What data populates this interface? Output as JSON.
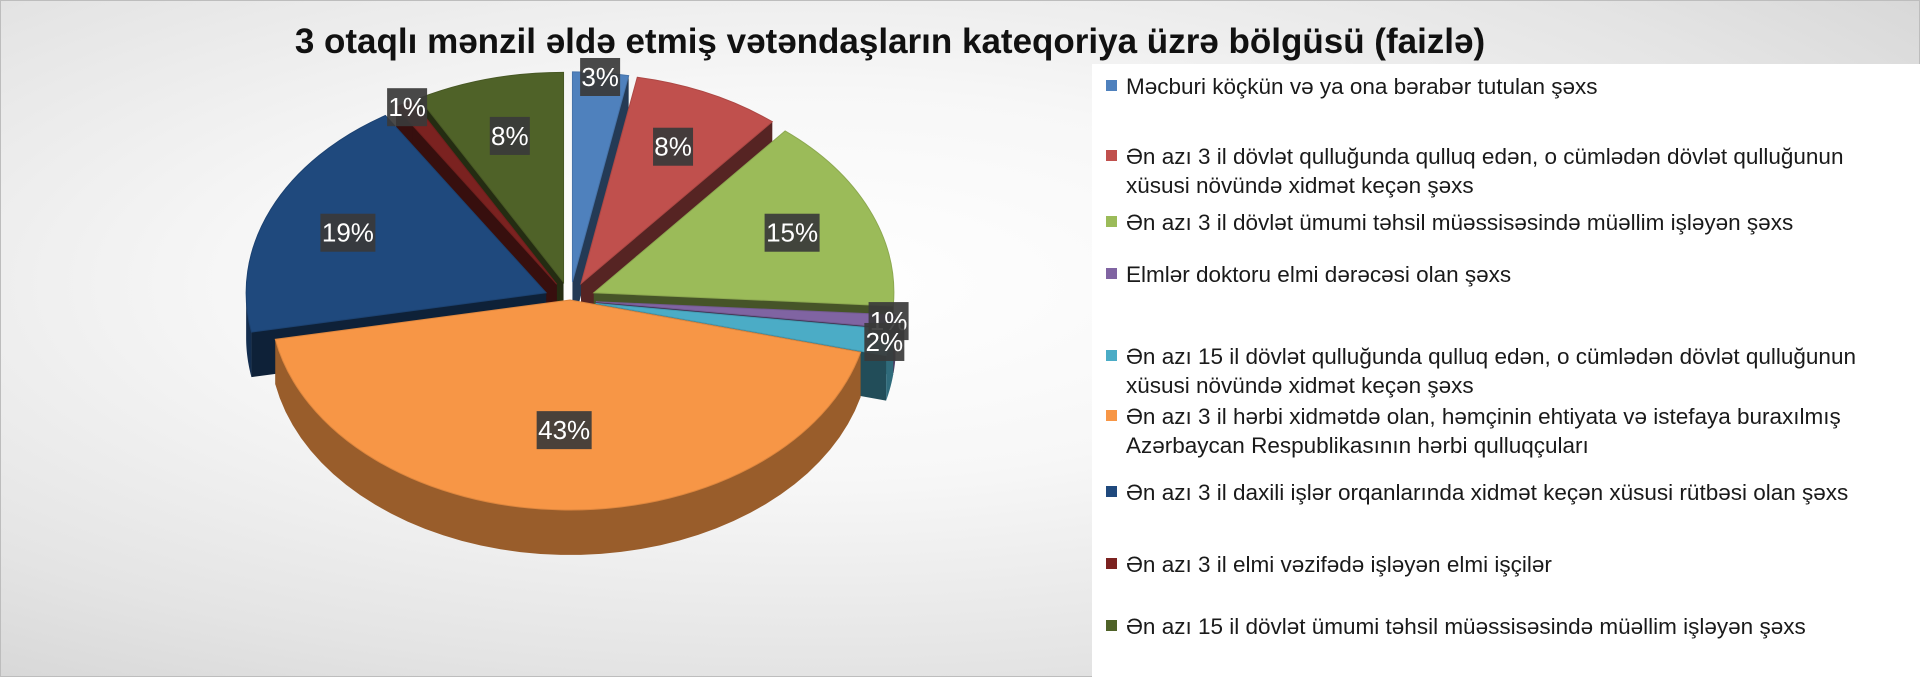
{
  "chart_data": {
    "type": "pie",
    "title": "3 otaqlı mənzil əldə etmiş vətəndaşların kateqoriya üzrə bölgüsü (faizlə)",
    "slices": [
      {
        "label": "Məcburi köçkün və ya ona bərabər tutulan şəxs",
        "value": 3,
        "value_label": "3%",
        "color": "#4F81BD"
      },
      {
        "label": "Ən azı 3 il dövlət qulluğunda qulluq edən, o cümlədən dövlət qulluğunun xüsusi növündə xidmət keçən şəxs",
        "value": 8,
        "value_label": "8%",
        "color": "#C0504D"
      },
      {
        "label": "Ən azı 3 il dövlət ümumi təhsil müəssisəsində müəllim işləyən şəxs",
        "value": 15,
        "value_label": "15%",
        "color": "#9BBB59"
      },
      {
        "label": "Elmlər doktoru elmi dərəcəsi olan şəxs",
        "value": 1,
        "value_label": "1%",
        "color": "#8064A2"
      },
      {
        "label": "Ən azı 15 il dövlət qulluğunda qulluq edən, o cümlədən dövlət qulluğunun xüsusi növündə xidmət keçən şəxs",
        "value": 2,
        "value_label": "2%",
        "color": "#4BACC6"
      },
      {
        "label": "Ən azı 3 il hərbi xidmətdə olan, həmçinin ehtiyata və istefaya buraxılmış Azərbaycan Respublikasının hərbi qulluqçuları",
        "value": 43,
        "value_label": "43%",
        "color": "#F79646"
      },
      {
        "label": "Ən azı 3 il daxili işlər orqanlarında xidmət keçən xüsusi rütbəsi olan şəxs",
        "value": 19,
        "value_label": "19%",
        "color": "#1F497D"
      },
      {
        "label": "Ən azı 3 il elmi vəzifədə işləyən elmi işçilər",
        "value": 1,
        "value_label": "1%",
        "color": "#7B2220"
      },
      {
        "label": "Ən azı 15 il dövlət ümumi təhsil müəssisəsində müəllim işləyən şəxs",
        "value": 8,
        "value_label": "8%",
        "color": "#4F6228"
      }
    ],
    "legend_position": "right",
    "style": "3d-exploded"
  }
}
